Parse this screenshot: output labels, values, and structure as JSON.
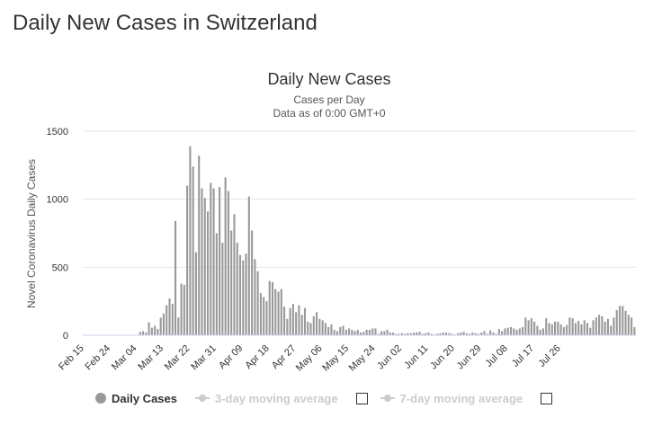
{
  "page": {
    "title": "Daily New Cases in Switzerland"
  },
  "legend": {
    "items": [
      {
        "label": "Daily Cases",
        "color": "#999999",
        "active": true
      },
      {
        "label": "3-day moving average",
        "color": "#cccccc",
        "active": false
      },
      {
        "label": "7-day moving average",
        "color": "#cccccc",
        "active": false
      }
    ]
  },
  "chart_data": {
    "type": "bar",
    "title": "Daily New Cases",
    "subtitle": "Cases per Day",
    "subtitle2": "Data as of 0:00 GMT+0",
    "xlabel": "",
    "ylabel": "Novel Coronavirus Daily Cases",
    "ylim": [
      0,
      1500
    ],
    "yticks": [
      0,
      500,
      1000,
      1500
    ],
    "grid": true,
    "bar_color": "#999999",
    "x_start": "Feb 15",
    "xticks": [
      "Feb 15",
      "Feb 24",
      "Mar 04",
      "Mar 13",
      "Mar 22",
      "Mar 31",
      "Apr 09",
      "Apr 18",
      "Apr 27",
      "May 06",
      "May 15",
      "May 24",
      "Jun 02",
      "Jun 11",
      "Jun 20",
      "Jun 29",
      "Jul 08",
      "Jul 17",
      "Jul 26"
    ],
    "series": [
      {
        "name": "Daily Cases",
        "values": [
          0,
          0,
          0,
          0,
          0,
          0,
          0,
          0,
          0,
          0,
          1,
          1,
          1,
          0,
          0,
          0,
          1,
          2,
          2,
          25,
          30,
          20,
          95,
          55,
          70,
          45,
          130,
          160,
          220,
          270,
          230,
          840,
          130,
          380,
          370,
          1100,
          1390,
          1240,
          610,
          1320,
          1080,
          1010,
          910,
          1120,
          1080,
          750,
          1090,
          680,
          1160,
          1060,
          770,
          890,
          680,
          590,
          550,
          600,
          1020,
          770,
          560,
          470,
          310,
          280,
          250,
          400,
          390,
          340,
          320,
          340,
          210,
          120,
          200,
          230,
          170,
          220,
          150,
          200,
          100,
          90,
          140,
          170,
          120,
          110,
          90,
          60,
          80,
          40,
          30,
          60,
          70,
          40,
          50,
          40,
          30,
          40,
          20,
          25,
          40,
          40,
          50,
          50,
          10,
          30,
          30,
          40,
          20,
          20,
          10,
          10,
          15,
          10,
          15,
          15,
          20,
          20,
          25,
          10,
          15,
          20,
          10,
          5,
          10,
          15,
          20,
          20,
          15,
          10,
          5,
          15,
          20,
          25,
          15,
          10,
          20,
          15,
          10,
          20,
          30,
          10,
          35,
          20,
          10,
          45,
          30,
          50,
          55,
          60,
          50,
          40,
          50,
          60,
          130,
          110,
          125,
          100,
          70,
          40,
          50,
          125,
          90,
          80,
          100,
          100,
          80,
          60,
          75,
          130,
          125,
          90,
          105,
          80,
          110,
          90,
          55,
          110,
          130,
          150,
          140,
          100,
          120,
          70,
          130,
          185,
          215,
          215,
          180,
          150,
          130,
          60
        ]
      }
    ]
  }
}
